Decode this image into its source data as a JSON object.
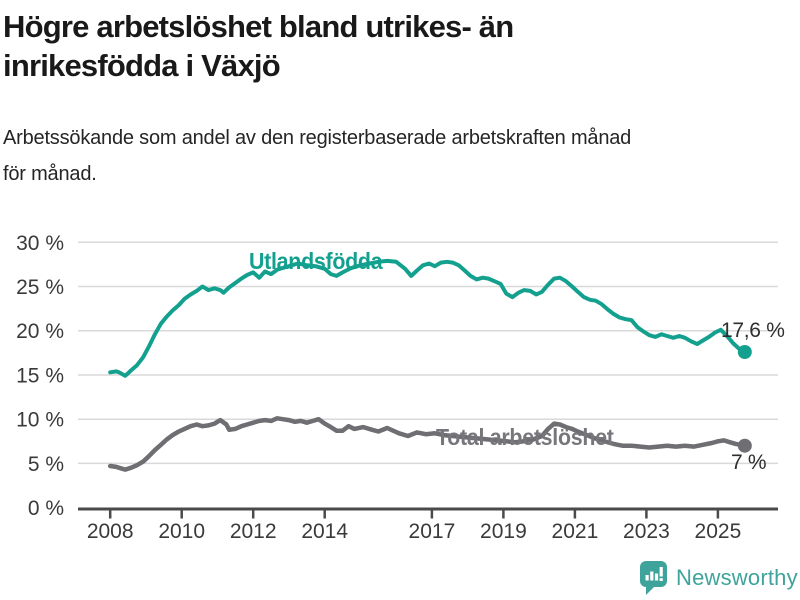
{
  "header": {
    "title_line1": "Högre arbetslöshet bland utrikes- än",
    "title_line2": "inrikesfödda i Växjö",
    "subtitle_line1": "Arbetssökande som andel av den registerbaserade arbetskraften månad",
    "subtitle_line2": "för månad."
  },
  "chart_data": {
    "type": "line",
    "title": "Högre arbetslöshet bland utrikes- än inrikesfödda i Växjö",
    "subtitle": "Arbetssökande som andel av den registerbaserade arbetskraften månad för månad.",
    "xlabel": "",
    "ylabel": "",
    "grid": "horizontal-only",
    "legend_position": "inline-labels",
    "ylim": [
      0,
      30
    ],
    "xlim": [
      2007.1,
      2026.68
    ],
    "y_ticks": [
      {
        "value": 0,
        "label": "0 %"
      },
      {
        "value": 5,
        "label": "5 %"
      },
      {
        "value": 10,
        "label": "10 %"
      },
      {
        "value": 15,
        "label": "15 %"
      },
      {
        "value": 20,
        "label": "20 %"
      },
      {
        "value": 25,
        "label": "25 %"
      },
      {
        "value": 30,
        "label": "30 %"
      }
    ],
    "x_ticks": [
      {
        "value": 2008,
        "label": "2008"
      },
      {
        "value": 2010,
        "label": "2010"
      },
      {
        "value": 2012,
        "label": "2012"
      },
      {
        "value": 2014,
        "label": "2014"
      },
      {
        "value": 2017,
        "label": "2017"
      },
      {
        "value": 2019,
        "label": "2019"
      },
      {
        "value": 2021,
        "label": "2021"
      },
      {
        "value": 2023,
        "label": "2023"
      },
      {
        "value": 2025,
        "label": "2025"
      }
    ],
    "series": [
      {
        "name": "Utlandsfödda",
        "color": "#14a08e",
        "end_value": 17.6,
        "end_label": "17,6 %",
        "points": [
          [
            2008.0,
            15.3
          ],
          [
            2008.17,
            15.4
          ],
          [
            2008.25,
            15.3
          ],
          [
            2008.42,
            14.9
          ],
          [
            2008.5,
            15.2
          ],
          [
            2008.58,
            15.5
          ],
          [
            2008.75,
            16.1
          ],
          [
            2008.92,
            17.0
          ],
          [
            2009.08,
            18.2
          ],
          [
            2009.25,
            19.6
          ],
          [
            2009.42,
            20.8
          ],
          [
            2009.58,
            21.6
          ],
          [
            2009.75,
            22.3
          ],
          [
            2009.92,
            22.9
          ],
          [
            2010.08,
            23.6
          ],
          [
            2010.25,
            24.1
          ],
          [
            2010.42,
            24.5
          ],
          [
            2010.58,
            25.0
          ],
          [
            2010.75,
            24.6
          ],
          [
            2010.92,
            24.8
          ],
          [
            2011.08,
            24.6
          ],
          [
            2011.17,
            24.3
          ],
          [
            2011.33,
            24.9
          ],
          [
            2011.5,
            25.4
          ],
          [
            2011.67,
            25.9
          ],
          [
            2011.83,
            26.3
          ],
          [
            2012.0,
            26.6
          ],
          [
            2012.17,
            26.0
          ],
          [
            2012.33,
            26.7
          ],
          [
            2012.5,
            26.4
          ],
          [
            2012.67,
            26.9
          ],
          [
            2012.83,
            27.1
          ],
          [
            2013.0,
            27.3
          ],
          [
            2013.25,
            27.6
          ],
          [
            2013.5,
            27.4
          ],
          [
            2013.75,
            27.3
          ],
          [
            2014.0,
            27.0
          ],
          [
            2014.17,
            26.4
          ],
          [
            2014.33,
            26.2
          ],
          [
            2014.5,
            26.6
          ],
          [
            2014.75,
            27.1
          ],
          [
            2015.0,
            27.4
          ],
          [
            2015.25,
            27.6
          ],
          [
            2015.5,
            27.8
          ],
          [
            2015.75,
            27.9
          ],
          [
            2016.0,
            27.8
          ],
          [
            2016.25,
            27.0
          ],
          [
            2016.42,
            26.2
          ],
          [
            2016.58,
            26.8
          ],
          [
            2016.75,
            27.4
          ],
          [
            2016.92,
            27.6
          ],
          [
            2017.08,
            27.3
          ],
          [
            2017.25,
            27.7
          ],
          [
            2017.42,
            27.8
          ],
          [
            2017.58,
            27.7
          ],
          [
            2017.75,
            27.4
          ],
          [
            2017.92,
            26.8
          ],
          [
            2018.08,
            26.2
          ],
          [
            2018.25,
            25.8
          ],
          [
            2018.42,
            26.0
          ],
          [
            2018.58,
            25.9
          ],
          [
            2018.75,
            25.6
          ],
          [
            2018.92,
            25.3
          ],
          [
            2019.08,
            24.2
          ],
          [
            2019.25,
            23.8
          ],
          [
            2019.42,
            24.3
          ],
          [
            2019.58,
            24.6
          ],
          [
            2019.75,
            24.5
          ],
          [
            2019.92,
            24.1
          ],
          [
            2020.08,
            24.4
          ],
          [
            2020.25,
            25.2
          ],
          [
            2020.42,
            25.9
          ],
          [
            2020.58,
            26.0
          ],
          [
            2020.75,
            25.6
          ],
          [
            2020.92,
            25.0
          ],
          [
            2021.08,
            24.4
          ],
          [
            2021.25,
            23.8
          ],
          [
            2021.42,
            23.5
          ],
          [
            2021.58,
            23.4
          ],
          [
            2021.75,
            23.0
          ],
          [
            2021.92,
            22.4
          ],
          [
            2022.08,
            21.9
          ],
          [
            2022.25,
            21.5
          ],
          [
            2022.42,
            21.3
          ],
          [
            2022.58,
            21.2
          ],
          [
            2022.75,
            20.4
          ],
          [
            2022.92,
            19.9
          ],
          [
            2023.08,
            19.5
          ],
          [
            2023.25,
            19.3
          ],
          [
            2023.42,
            19.6
          ],
          [
            2023.58,
            19.4
          ],
          [
            2023.75,
            19.2
          ],
          [
            2023.92,
            19.4
          ],
          [
            2024.08,
            19.2
          ],
          [
            2024.25,
            18.8
          ],
          [
            2024.42,
            18.5
          ],
          [
            2024.58,
            18.9
          ],
          [
            2024.75,
            19.3
          ],
          [
            2024.92,
            19.8
          ],
          [
            2025.08,
            20.1
          ],
          [
            2025.25,
            19.4
          ],
          [
            2025.42,
            18.6
          ],
          [
            2025.58,
            18.0
          ],
          [
            2025.75,
            17.6
          ]
        ]
      },
      {
        "name": "Total arbetslöshet",
        "color": "#6e6e73",
        "end_value": 7.0,
        "end_label": "7 %",
        "points": [
          [
            2008.0,
            4.7
          ],
          [
            2008.17,
            4.6
          ],
          [
            2008.33,
            4.4
          ],
          [
            2008.42,
            4.3
          ],
          [
            2008.58,
            4.5
          ],
          [
            2008.75,
            4.8
          ],
          [
            2008.92,
            5.2
          ],
          [
            2009.08,
            5.8
          ],
          [
            2009.25,
            6.5
          ],
          [
            2009.42,
            7.1
          ],
          [
            2009.58,
            7.7
          ],
          [
            2009.75,
            8.2
          ],
          [
            2009.92,
            8.6
          ],
          [
            2010.08,
            8.9
          ],
          [
            2010.25,
            9.2
          ],
          [
            2010.42,
            9.4
          ],
          [
            2010.58,
            9.2
          ],
          [
            2010.75,
            9.3
          ],
          [
            2010.92,
            9.5
          ],
          [
            2011.0,
            9.7
          ],
          [
            2011.08,
            9.9
          ],
          [
            2011.25,
            9.4
          ],
          [
            2011.33,
            8.8
          ],
          [
            2011.5,
            8.9
          ],
          [
            2011.67,
            9.2
          ],
          [
            2011.83,
            9.4
          ],
          [
            2012.0,
            9.6
          ],
          [
            2012.17,
            9.8
          ],
          [
            2012.33,
            9.9
          ],
          [
            2012.5,
            9.8
          ],
          [
            2012.67,
            10.1
          ],
          [
            2012.83,
            10.0
          ],
          [
            2013.0,
            9.9
          ],
          [
            2013.17,
            9.7
          ],
          [
            2013.33,
            9.8
          ],
          [
            2013.5,
            9.6
          ],
          [
            2013.67,
            9.8
          ],
          [
            2013.83,
            10.0
          ],
          [
            2014.0,
            9.5
          ],
          [
            2014.17,
            9.1
          ],
          [
            2014.33,
            8.7
          ],
          [
            2014.5,
            8.7
          ],
          [
            2014.67,
            9.2
          ],
          [
            2014.83,
            8.9
          ],
          [
            2015.08,
            9.1
          ],
          [
            2015.33,
            8.8
          ],
          [
            2015.5,
            8.6
          ],
          [
            2015.75,
            9.0
          ],
          [
            2016.08,
            8.4
          ],
          [
            2016.33,
            8.1
          ],
          [
            2016.58,
            8.5
          ],
          [
            2016.83,
            8.3
          ],
          [
            2017.08,
            8.4
          ],
          [
            2017.33,
            8.2
          ],
          [
            2017.58,
            8.1
          ],
          [
            2017.83,
            8.0
          ],
          [
            2018.08,
            7.9
          ],
          [
            2018.33,
            7.8
          ],
          [
            2018.58,
            7.7
          ],
          [
            2018.83,
            7.6
          ],
          [
            2019.08,
            7.5
          ],
          [
            2019.33,
            7.4
          ],
          [
            2019.58,
            7.5
          ],
          [
            2019.83,
            7.7
          ],
          [
            2020.08,
            8.1
          ],
          [
            2020.25,
            8.9
          ],
          [
            2020.42,
            9.5
          ],
          [
            2020.58,
            9.4
          ],
          [
            2020.75,
            9.1
          ],
          [
            2020.92,
            8.9
          ],
          [
            2021.08,
            8.6
          ],
          [
            2021.33,
            8.2
          ],
          [
            2021.58,
            7.8
          ],
          [
            2021.83,
            7.5
          ],
          [
            2022.08,
            7.2
          ],
          [
            2022.33,
            7.0
          ],
          [
            2022.58,
            7.0
          ],
          [
            2022.83,
            6.9
          ],
          [
            2023.08,
            6.8
          ],
          [
            2023.33,
            6.9
          ],
          [
            2023.58,
            7.0
          ],
          [
            2023.83,
            6.9
          ],
          [
            2024.08,
            7.0
          ],
          [
            2024.33,
            6.9
          ],
          [
            2024.58,
            7.1
          ],
          [
            2024.83,
            7.3
          ],
          [
            2025.0,
            7.5
          ],
          [
            2025.17,
            7.6
          ],
          [
            2025.33,
            7.4
          ],
          [
            2025.5,
            7.2
          ],
          [
            2025.75,
            7.0
          ]
        ]
      }
    ]
  },
  "footer": {
    "brand": "Newsworthy",
    "brand_color": "#3ea49b"
  }
}
